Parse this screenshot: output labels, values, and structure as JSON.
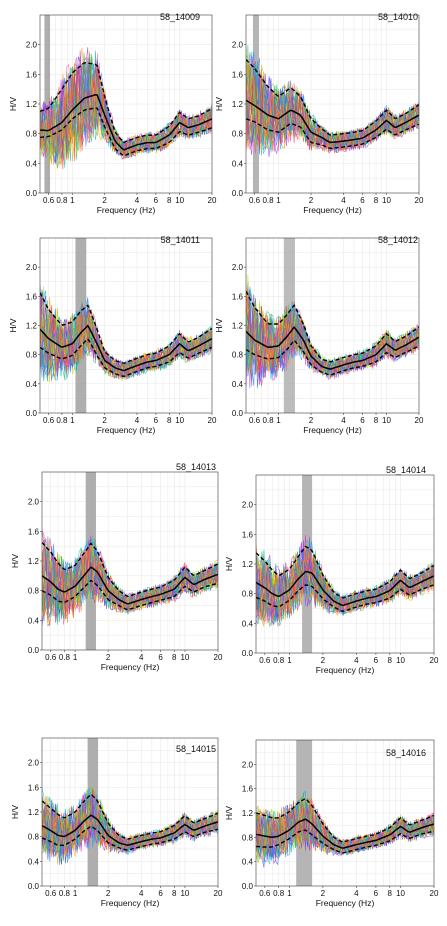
{
  "chart_data": [
    {
      "type": "line",
      "title": "58_14009",
      "xlabel": "Frequency (Hz)",
      "ylabel": "H/V",
      "xscale": "log",
      "xlim": [
        0.5,
        20
      ],
      "ylim": [
        0,
        2.4
      ],
      "x_ticks": [
        {
          "v": 0.6,
          "l": "0.6"
        },
        {
          "v": 0.8,
          "l": "0.8"
        },
        {
          "v": 1,
          "l": "1"
        },
        {
          "v": 2,
          "l": "2"
        },
        {
          "v": 4,
          "l": "4"
        },
        {
          "v": 6,
          "l": "6"
        },
        {
          "v": 8,
          "l": "8"
        },
        {
          "v": 10,
          "l": "10"
        },
        {
          "v": 20,
          "l": "20"
        }
      ],
      "y_ticks": [
        0,
        0.4,
        0.8,
        1.2,
        1.6,
        2.0
      ],
      "band": [
        0.55,
        0.62
      ],
      "band_color": "#a0a0a0",
      "mean_curve": {
        "x": [
          0.5,
          0.6,
          0.8,
          1.0,
          1.3,
          1.7,
          2.0,
          2.5,
          3.0,
          4.0,
          5.0,
          6.0,
          8.0,
          10.0,
          12.0,
          15.0,
          20.0
        ],
        "y": [
          0.85,
          0.84,
          0.95,
          1.12,
          1.28,
          1.33,
          1.05,
          0.7,
          0.58,
          0.65,
          0.68,
          0.68,
          0.78,
          0.95,
          0.88,
          0.92,
          1.0
        ]
      },
      "spread_upper": [
        0.25,
        0.3,
        0.45,
        0.5,
        0.48,
        0.4,
        0.25,
        0.12,
        0.1,
        0.1,
        0.1,
        0.1,
        0.12,
        0.14,
        0.12,
        0.12,
        0.14
      ],
      "spread_lower": [
        0.1,
        0.08,
        0.1,
        0.12,
        0.16,
        0.18,
        0.16,
        0.1,
        0.08,
        0.08,
        0.08,
        0.08,
        0.1,
        0.12,
        0.1,
        0.1,
        0.12
      ]
    },
    {
      "type": "line",
      "title": "58_14010",
      "xlabel": "Frequency (Hz)",
      "ylabel": "H/V",
      "xscale": "log",
      "xlim": [
        0.5,
        20
      ],
      "ylim": [
        0,
        2.4
      ],
      "x_ticks": [
        {
          "v": 0.6,
          "l": "0.6"
        },
        {
          "v": 0.8,
          "l": "0.8"
        },
        {
          "v": 1,
          "l": "1"
        },
        {
          "v": 2,
          "l": "2"
        },
        {
          "v": 4,
          "l": "4"
        },
        {
          "v": 6,
          "l": "6"
        },
        {
          "v": 8,
          "l": "8"
        },
        {
          "v": 10,
          "l": "10"
        },
        {
          "v": 20,
          "l": "20"
        }
      ],
      "y_ticks": [
        0,
        0.4,
        0.8,
        1.2,
        1.6,
        2.0
      ],
      "band": [
        0.58,
        0.66
      ],
      "band_color": "#a8a8a8",
      "mean_curve": {
        "x": [
          0.5,
          0.6,
          0.8,
          1.0,
          1.3,
          1.6,
          2.0,
          2.5,
          3.0,
          4.0,
          5.0,
          6.0,
          8.0,
          10.0,
          12.0,
          15.0,
          20.0
        ],
        "y": [
          1.25,
          1.18,
          1.05,
          1.0,
          1.12,
          1.05,
          0.82,
          0.75,
          0.68,
          0.7,
          0.72,
          0.74,
          0.85,
          0.98,
          0.88,
          0.95,
          1.05
        ]
      },
      "spread_upper": [
        0.55,
        0.5,
        0.38,
        0.3,
        0.3,
        0.25,
        0.18,
        0.12,
        0.1,
        0.1,
        0.1,
        0.1,
        0.12,
        0.14,
        0.12,
        0.12,
        0.14
      ],
      "spread_lower": [
        0.25,
        0.22,
        0.2,
        0.18,
        0.18,
        0.16,
        0.14,
        0.1,
        0.08,
        0.08,
        0.08,
        0.08,
        0.1,
        0.12,
        0.1,
        0.1,
        0.12
      ]
    },
    {
      "type": "line",
      "title": "58_14011",
      "xlabel": "Frequency (Hz)",
      "ylabel": "H/V",
      "xscale": "log",
      "xlim": [
        0.5,
        20
      ],
      "ylim": [
        0,
        2.4
      ],
      "x_ticks": [
        {
          "v": 0.6,
          "l": "0.6"
        },
        {
          "v": 0.8,
          "l": "0.8"
        },
        {
          "v": 1,
          "l": "1"
        },
        {
          "v": 2,
          "l": "2"
        },
        {
          "v": 4,
          "l": "4"
        },
        {
          "v": 6,
          "l": "6"
        },
        {
          "v": 8,
          "l": "8"
        },
        {
          "v": 10,
          "l": "10"
        },
        {
          "v": 20,
          "l": "20"
        }
      ],
      "y_ticks": [
        0,
        0.4,
        0.8,
        1.2,
        1.6,
        2.0
      ],
      "band": [
        1.07,
        1.35
      ],
      "band_color": "#a0a0a0",
      "mean_curve": {
        "x": [
          0.5,
          0.6,
          0.8,
          1.0,
          1.2,
          1.4,
          1.7,
          2.0,
          2.5,
          3.0,
          4.0,
          5.0,
          6.0,
          8.0,
          10.0,
          12.0,
          15.0,
          20.0
        ],
        "y": [
          1.15,
          1.02,
          0.9,
          0.95,
          1.1,
          1.2,
          0.95,
          0.72,
          0.62,
          0.58,
          0.65,
          0.7,
          0.72,
          0.8,
          0.95,
          0.85,
          0.92,
          1.02
        ]
      },
      "spread_upper": [
        0.5,
        0.4,
        0.3,
        0.3,
        0.3,
        0.28,
        0.2,
        0.12,
        0.1,
        0.1,
        0.1,
        0.1,
        0.1,
        0.12,
        0.14,
        0.12,
        0.12,
        0.14
      ],
      "spread_lower": [
        0.25,
        0.2,
        0.16,
        0.16,
        0.18,
        0.18,
        0.16,
        0.1,
        0.08,
        0.08,
        0.08,
        0.08,
        0.08,
        0.1,
        0.12,
        0.1,
        0.1,
        0.12
      ]
    },
    {
      "type": "line",
      "title": "58_14012",
      "xlabel": "Frequency (Hz)",
      "ylabel": "H/V",
      "xscale": "log",
      "xlim": [
        0.5,
        20
      ],
      "ylim": [
        0,
        2.4
      ],
      "x_ticks": [
        {
          "v": 0.6,
          "l": "0.6"
        },
        {
          "v": 0.8,
          "l": "0.8"
        },
        {
          "v": 1,
          "l": "1"
        },
        {
          "v": 2,
          "l": "2"
        },
        {
          "v": 4,
          "l": "4"
        },
        {
          "v": 6,
          "l": "6"
        },
        {
          "v": 8,
          "l": "8"
        },
        {
          "v": 10,
          "l": "10"
        },
        {
          "v": 20,
          "l": "20"
        }
      ],
      "y_ticks": [
        0,
        0.4,
        0.8,
        1.2,
        1.6,
        2.0
      ],
      "band": [
        1.12,
        1.42
      ],
      "band_color": "#b0b0b0",
      "mean_curve": {
        "x": [
          0.5,
          0.6,
          0.8,
          1.0,
          1.2,
          1.4,
          1.7,
          2.0,
          2.5,
          3.0,
          4.0,
          5.0,
          6.0,
          8.0,
          10.0,
          12.0,
          15.0,
          20.0
        ],
        "y": [
          1.12,
          1.0,
          0.9,
          0.92,
          1.05,
          1.18,
          1.0,
          0.78,
          0.64,
          0.6,
          0.66,
          0.7,
          0.72,
          0.8,
          0.95,
          0.86,
          0.93,
          1.04
        ]
      },
      "spread_upper": [
        0.55,
        0.45,
        0.32,
        0.3,
        0.3,
        0.3,
        0.22,
        0.14,
        0.1,
        0.1,
        0.1,
        0.1,
        0.1,
        0.12,
        0.14,
        0.12,
        0.12,
        0.14
      ],
      "spread_lower": [
        0.25,
        0.2,
        0.16,
        0.16,
        0.18,
        0.18,
        0.16,
        0.12,
        0.08,
        0.08,
        0.08,
        0.08,
        0.08,
        0.1,
        0.12,
        0.1,
        0.1,
        0.12
      ]
    },
    {
      "type": "line",
      "title": "58_14013",
      "xlabel": "Frequency (Hz)",
      "ylabel": "H/V",
      "xscale": "log",
      "xlim": [
        0.5,
        20
      ],
      "ylim": [
        0,
        2.4
      ],
      "x_ticks": [
        {
          "v": 0.6,
          "l": "0.6"
        },
        {
          "v": 0.8,
          "l": "0.8"
        },
        {
          "v": 1,
          "l": "1"
        },
        {
          "v": 2,
          "l": "2"
        },
        {
          "v": 4,
          "l": "4"
        },
        {
          "v": 6,
          "l": "6"
        },
        {
          "v": 8,
          "l": "8"
        },
        {
          "v": 10,
          "l": "10"
        },
        {
          "v": 20,
          "l": "20"
        }
      ],
      "y_ticks": [
        0,
        0.4,
        0.8,
        1.2,
        1.6,
        2.0
      ],
      "band": [
        1.25,
        1.55
      ],
      "band_color": "#a0a0a0",
      "mean_curve": {
        "x": [
          0.5,
          0.6,
          0.7,
          0.8,
          1.0,
          1.2,
          1.4,
          1.6,
          2.0,
          2.5,
          3.0,
          4.0,
          5.0,
          6.0,
          8.0,
          10.0,
          12.0,
          15.0,
          20.0
        ],
        "y": [
          1.0,
          0.92,
          0.82,
          0.78,
          0.86,
          1.0,
          1.12,
          1.05,
          0.8,
          0.68,
          0.62,
          0.68,
          0.72,
          0.75,
          0.82,
          0.98,
          0.88,
          0.95,
          1.02
        ]
      },
      "spread_upper": [
        0.45,
        0.4,
        0.35,
        0.3,
        0.28,
        0.3,
        0.32,
        0.28,
        0.18,
        0.12,
        0.1,
        0.1,
        0.1,
        0.1,
        0.12,
        0.14,
        0.12,
        0.12,
        0.14
      ],
      "spread_lower": [
        0.2,
        0.18,
        0.16,
        0.14,
        0.14,
        0.16,
        0.18,
        0.18,
        0.12,
        0.08,
        0.08,
        0.08,
        0.08,
        0.08,
        0.1,
        0.12,
        0.1,
        0.1,
        0.12
      ]
    },
    {
      "type": "line",
      "title": "58_14014",
      "xlabel": "Frequency (Hz)",
      "ylabel": "H/V",
      "xscale": "log",
      "xlim": [
        0.5,
        20
      ],
      "ylim": [
        0,
        2.4
      ],
      "x_ticks": [
        {
          "v": 0.6,
          "l": "0.6"
        },
        {
          "v": 0.8,
          "l": "0.8"
        },
        {
          "v": 1,
          "l": "1"
        },
        {
          "v": 2,
          "l": "2"
        },
        {
          "v": 4,
          "l": "4"
        },
        {
          "v": 6,
          "l": "6"
        },
        {
          "v": 8,
          "l": "8"
        },
        {
          "v": 10,
          "l": "10"
        },
        {
          "v": 20,
          "l": "20"
        }
      ],
      "y_ticks": [
        0,
        0.4,
        0.8,
        1.2,
        1.6,
        2.0
      ],
      "band": [
        1.3,
        1.6
      ],
      "band_color": "#a8a8a8",
      "mean_curve": {
        "x": [
          0.5,
          0.6,
          0.7,
          0.8,
          1.0,
          1.2,
          1.4,
          1.6,
          2.0,
          2.5,
          3.0,
          4.0,
          5.0,
          6.0,
          8.0,
          10.0,
          12.0,
          15.0,
          20.0
        ],
        "y": [
          0.95,
          0.88,
          0.8,
          0.76,
          0.85,
          1.0,
          1.1,
          1.08,
          0.85,
          0.7,
          0.64,
          0.7,
          0.74,
          0.76,
          0.84,
          0.98,
          0.88,
          0.95,
          1.04
        ]
      },
      "spread_upper": [
        0.4,
        0.36,
        0.32,
        0.28,
        0.28,
        0.3,
        0.34,
        0.3,
        0.2,
        0.12,
        0.1,
        0.1,
        0.1,
        0.1,
        0.12,
        0.14,
        0.12,
        0.12,
        0.14
      ],
      "spread_lower": [
        0.2,
        0.18,
        0.16,
        0.14,
        0.14,
        0.16,
        0.18,
        0.18,
        0.12,
        0.08,
        0.08,
        0.08,
        0.08,
        0.08,
        0.1,
        0.12,
        0.1,
        0.1,
        0.12
      ]
    },
    {
      "type": "line",
      "title": "58_14015",
      "xlabel": "Frequency (Hz)",
      "ylabel": "H/V",
      "xscale": "log",
      "xlim": [
        0.5,
        20
      ],
      "ylim": [
        0,
        2.4
      ],
      "x_ticks": [
        {
          "v": 0.6,
          "l": "0.6"
        },
        {
          "v": 0.8,
          "l": "0.8"
        },
        {
          "v": 1,
          "l": "1"
        },
        {
          "v": 2,
          "l": "2"
        },
        {
          "v": 4,
          "l": "4"
        },
        {
          "v": 6,
          "l": "6"
        },
        {
          "v": 8,
          "l": "8"
        },
        {
          "v": 10,
          "l": "10"
        },
        {
          "v": 20,
          "l": "20"
        }
      ],
      "y_ticks": [
        0,
        0.4,
        0.8,
        1.2,
        1.6,
        2.0
      ],
      "band": [
        1.3,
        1.62
      ],
      "band_color": "#a0a0a0",
      "mean_curve": {
        "x": [
          0.5,
          0.6,
          0.7,
          0.8,
          1.0,
          1.2,
          1.4,
          1.6,
          2.0,
          2.5,
          3.0,
          4.0,
          5.0,
          6.0,
          8.0,
          10.0,
          12.0,
          15.0,
          20.0
        ],
        "y": [
          0.98,
          0.9,
          0.82,
          0.8,
          0.9,
          1.05,
          1.15,
          1.08,
          0.82,
          0.7,
          0.66,
          0.72,
          0.76,
          0.78,
          0.86,
          1.0,
          0.9,
          0.97,
          1.04
        ]
      },
      "spread_upper": [
        0.4,
        0.36,
        0.34,
        0.3,
        0.3,
        0.32,
        0.34,
        0.3,
        0.2,
        0.12,
        0.1,
        0.1,
        0.1,
        0.1,
        0.12,
        0.14,
        0.12,
        0.12,
        0.14
      ],
      "spread_lower": [
        0.2,
        0.18,
        0.16,
        0.14,
        0.14,
        0.16,
        0.18,
        0.18,
        0.12,
        0.08,
        0.08,
        0.08,
        0.08,
        0.08,
        0.1,
        0.12,
        0.1,
        0.1,
        0.12
      ]
    },
    {
      "type": "line",
      "title": "58_14016",
      "xlabel": "Frequency (Hz)",
      "ylabel": "H/V",
      "xscale": "log",
      "xlim": [
        0.5,
        20
      ],
      "ylim": [
        0,
        2.4
      ],
      "x_ticks": [
        {
          "v": 0.6,
          "l": "0.6"
        },
        {
          "v": 0.8,
          "l": "0.8"
        },
        {
          "v": 1,
          "l": "1"
        },
        {
          "v": 2,
          "l": "2"
        },
        {
          "v": 4,
          "l": "4"
        },
        {
          "v": 6,
          "l": "6"
        },
        {
          "v": 8,
          "l": "8"
        },
        {
          "v": 10,
          "l": "10"
        },
        {
          "v": 20,
          "l": "20"
        }
      ],
      "y_ticks": [
        0,
        0.4,
        0.8,
        1.2,
        1.6,
        2.0
      ],
      "band": [
        1.15,
        1.6
      ],
      "band_color": "#a8a8a8",
      "mean_curve": {
        "x": [
          0.5,
          0.6,
          0.7,
          0.8,
          1.0,
          1.2,
          1.4,
          1.6,
          2.0,
          2.5,
          3.0,
          4.0,
          5.0,
          6.0,
          8.0,
          10.0,
          12.0,
          15.0,
          20.0
        ],
        "y": [
          0.85,
          0.82,
          0.8,
          0.82,
          0.92,
          1.05,
          1.1,
          1.02,
          0.82,
          0.68,
          0.62,
          0.68,
          0.72,
          0.75,
          0.84,
          0.98,
          0.88,
          0.95,
          1.02
        ]
      },
      "spread_upper": [
        0.35,
        0.34,
        0.32,
        0.3,
        0.3,
        0.32,
        0.34,
        0.3,
        0.2,
        0.12,
        0.1,
        0.1,
        0.1,
        0.1,
        0.12,
        0.14,
        0.12,
        0.12,
        0.14
      ],
      "spread_lower": [
        0.2,
        0.18,
        0.16,
        0.14,
        0.14,
        0.16,
        0.18,
        0.18,
        0.12,
        0.08,
        0.08,
        0.08,
        0.08,
        0.08,
        0.1,
        0.12,
        0.1,
        0.1,
        0.12
      ]
    }
  ]
}
